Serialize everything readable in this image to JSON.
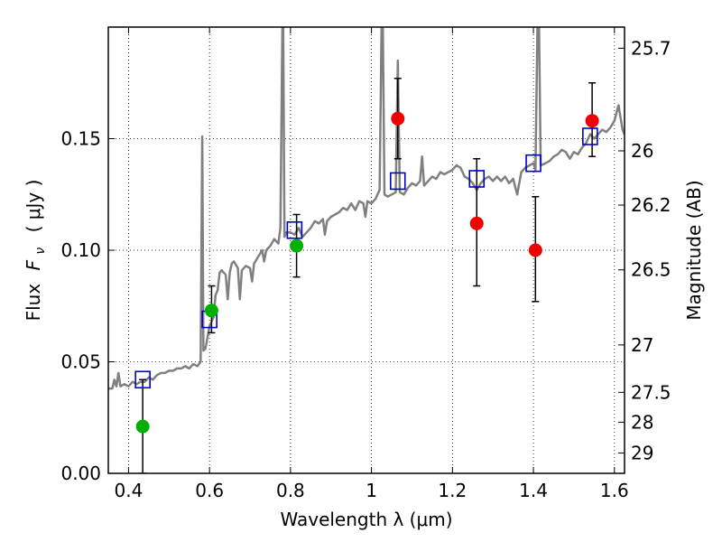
{
  "chart_data": {
    "type": "scatter",
    "xlabel": "Wavelength  λ (μm)",
    "ylabel": "Flux  F_ν  ( μJy )",
    "ylabel_parts": {
      "prefix": "Flux",
      "symbol": "F",
      "subscript": "ν",
      "unit": "( μJy )"
    },
    "y2label": "Magnitude (AB)",
    "xlim": [
      0.35,
      1.625
    ],
    "ylim": [
      0.0,
      0.2
    ],
    "grid": true,
    "x_ticks": [
      {
        "value": 0.4,
        "label": "0.4"
      },
      {
        "value": 0.6,
        "label": "0.6"
      },
      {
        "value": 0.8,
        "label": "0.8"
      },
      {
        "value": 1.0,
        "label": "1"
      },
      {
        "value": 1.2,
        "label": "1.2"
      },
      {
        "value": 1.4,
        "label": "1.4"
      },
      {
        "value": 1.6,
        "label": "1.6"
      }
    ],
    "y_ticks": [
      {
        "value": 0.0,
        "label": "0.00"
      },
      {
        "value": 0.05,
        "label": "0.05"
      },
      {
        "value": 0.1,
        "label": "0.10"
      },
      {
        "value": 0.15,
        "label": "0.15"
      }
    ],
    "y2_ticks": [
      {
        "mag": 25.7,
        "label": "25.7"
      },
      {
        "mag": 26.0,
        "label": "26"
      },
      {
        "mag": 26.2,
        "label": "26.2"
      },
      {
        "mag": 26.5,
        "label": "26.5"
      },
      {
        "mag": 27.0,
        "label": "27"
      },
      {
        "mag": 27.5,
        "label": "27.5"
      },
      {
        "mag": 28.0,
        "label": "28"
      },
      {
        "mag": 29.0,
        "label": "29"
      }
    ],
    "colors": {
      "template": "#808080",
      "model_box": "#0000cc",
      "detection_green": "#00b000",
      "detection_red": "#ee0000",
      "errorbar": "#000000"
    },
    "series": [
      {
        "marker": "circle",
        "color": "#00b000",
        "points": [
          {
            "x": 0.435,
            "y": 0.021,
            "yerr_low": 0.021,
            "yerr_high": 0.021
          },
          {
            "x": 0.605,
            "y": 0.073,
            "yerr_low": 0.01,
            "yerr_high": 0.011
          },
          {
            "x": 0.815,
            "y": 0.102,
            "yerr_low": 0.014,
            "yerr_high": 0.014
          }
        ]
      },
      {
        "marker": "circle",
        "color": "#ee0000",
        "points": [
          {
            "x": 1.065,
            "y": 0.159,
            "yerr_low": 0.018,
            "yerr_high": 0.018
          },
          {
            "x": 1.26,
            "y": 0.112,
            "yerr_low": 0.028,
            "yerr_high": 0.029
          },
          {
            "x": 1.405,
            "y": 0.1,
            "yerr_low": 0.023,
            "yerr_high": 0.024
          },
          {
            "x": 1.545,
            "y": 0.158,
            "yerr_low": 0.016,
            "yerr_high": 0.017
          }
        ]
      },
      {
        "marker": "square",
        "color": "#0000cc",
        "points": [
          {
            "x": 0.435,
            "y": 0.042
          },
          {
            "x": 0.6,
            "y": 0.069
          },
          {
            "x": 0.81,
            "y": 0.109
          },
          {
            "x": 1.065,
            "y": 0.131
          },
          {
            "x": 1.26,
            "y": 0.132
          },
          {
            "x": 1.4,
            "y": 0.139
          },
          {
            "x": 1.54,
            "y": 0.151
          }
        ]
      },
      {
        "marker": "line",
        "color": "#808080",
        "points": [
          [
            0.35,
            0.038
          ],
          [
            0.36,
            0.038
          ],
          [
            0.365,
            0.042
          ],
          [
            0.37,
            0.039
          ],
          [
            0.375,
            0.045
          ],
          [
            0.38,
            0.039
          ],
          [
            0.39,
            0.04
          ],
          [
            0.4,
            0.039
          ],
          [
            0.41,
            0.041
          ],
          [
            0.42,
            0.04
          ],
          [
            0.43,
            0.041
          ],
          [
            0.44,
            0.041
          ],
          [
            0.45,
            0.043
          ],
          [
            0.46,
            0.042
          ],
          [
            0.47,
            0.044
          ],
          [
            0.48,
            0.045
          ],
          [
            0.49,
            0.045
          ],
          [
            0.5,
            0.046
          ],
          [
            0.51,
            0.046
          ],
          [
            0.52,
            0.047
          ],
          [
            0.53,
            0.047
          ],
          [
            0.54,
            0.048
          ],
          [
            0.55,
            0.047
          ],
          [
            0.56,
            0.049
          ],
          [
            0.57,
            0.048
          ],
          [
            0.578,
            0.05
          ],
          [
            0.582,
            0.151
          ],
          [
            0.585,
            0.055
          ],
          [
            0.59,
            0.056
          ],
          [
            0.6,
            0.066
          ],
          [
            0.61,
            0.07
          ],
          [
            0.615,
            0.08
          ],
          [
            0.62,
            0.082
          ],
          [
            0.625,
            0.09
          ],
          [
            0.63,
            0.091
          ],
          [
            0.64,
            0.089
          ],
          [
            0.645,
            0.078
          ],
          [
            0.65,
            0.09
          ],
          [
            0.655,
            0.094
          ],
          [
            0.66,
            0.095
          ],
          [
            0.67,
            0.092
          ],
          [
            0.675,
            0.078
          ],
          [
            0.68,
            0.091
          ],
          [
            0.69,
            0.093
          ],
          [
            0.7,
            0.092
          ],
          [
            0.705,
            0.086
          ],
          [
            0.71,
            0.094
          ],
          [
            0.72,
            0.097
          ],
          [
            0.73,
            0.1
          ],
          [
            0.735,
            0.095
          ],
          [
            0.74,
            0.1
          ],
          [
            0.75,
            0.102
          ],
          [
            0.76,
            0.105
          ],
          [
            0.77,
            0.103
          ],
          [
            0.775,
            0.11
          ],
          [
            0.78,
            0.2
          ],
          [
            0.782,
            0.2
          ],
          [
            0.785,
            0.106
          ],
          [
            0.79,
            0.108
          ],
          [
            0.8,
            0.108
          ],
          [
            0.81,
            0.107
          ],
          [
            0.82,
            0.11
          ],
          [
            0.83,
            0.106
          ],
          [
            0.84,
            0.108
          ],
          [
            0.85,
            0.11
          ],
          [
            0.86,
            0.113
          ],
          [
            0.87,
            0.112
          ],
          [
            0.88,
            0.114
          ],
          [
            0.885,
            0.107
          ],
          [
            0.89,
            0.113
          ],
          [
            0.9,
            0.115
          ],
          [
            0.91,
            0.116
          ],
          [
            0.92,
            0.117
          ],
          [
            0.93,
            0.119
          ],
          [
            0.94,
            0.118
          ],
          [
            0.95,
            0.121
          ],
          [
            0.96,
            0.118
          ],
          [
            0.97,
            0.122
          ],
          [
            0.98,
            0.121
          ],
          [
            0.985,
            0.115
          ],
          [
            0.99,
            0.122
          ],
          [
            1.0,
            0.121
          ],
          [
            1.01,
            0.123
          ],
          [
            1.02,
            0.127
          ],
          [
            1.025,
            0.2
          ],
          [
            1.028,
            0.2
          ],
          [
            1.032,
            0.125
          ],
          [
            1.04,
            0.124
          ],
          [
            1.05,
            0.125
          ],
          [
            1.06,
            0.126
          ],
          [
            1.065,
            0.185
          ],
          [
            1.07,
            0.126
          ],
          [
            1.08,
            0.125
          ],
          [
            1.09,
            0.128
          ],
          [
            1.1,
            0.13
          ],
          [
            1.11,
            0.129
          ],
          [
            1.12,
            0.131
          ],
          [
            1.125,
            0.142
          ],
          [
            1.13,
            0.129
          ],
          [
            1.14,
            0.131
          ],
          [
            1.15,
            0.133
          ],
          [
            1.16,
            0.132
          ],
          [
            1.17,
            0.135
          ],
          [
            1.18,
            0.134
          ],
          [
            1.19,
            0.135
          ],
          [
            1.2,
            0.136
          ],
          [
            1.21,
            0.138
          ],
          [
            1.22,
            0.137
          ],
          [
            1.23,
            0.133
          ],
          [
            1.24,
            0.132
          ],
          [
            1.25,
            0.13
          ],
          [
            1.26,
            0.127
          ],
          [
            1.27,
            0.13
          ],
          [
            1.28,
            0.132
          ],
          [
            1.29,
            0.133
          ],
          [
            1.3,
            0.131
          ],
          [
            1.31,
            0.133
          ],
          [
            1.32,
            0.131
          ],
          [
            1.33,
            0.133
          ],
          [
            1.34,
            0.13
          ],
          [
            1.35,
            0.132
          ],
          [
            1.36,
            0.125
          ],
          [
            1.37,
            0.135
          ],
          [
            1.38,
            0.137
          ],
          [
            1.39,
            0.138
          ],
          [
            1.4,
            0.139
          ],
          [
            1.405,
            0.136
          ],
          [
            1.41,
            0.2
          ],
          [
            1.414,
            0.2
          ],
          [
            1.418,
            0.138
          ],
          [
            1.43,
            0.139
          ],
          [
            1.44,
            0.14
          ],
          [
            1.45,
            0.142
          ],
          [
            1.46,
            0.143
          ],
          [
            1.47,
            0.145
          ],
          [
            1.48,
            0.144
          ],
          [
            1.49,
            0.141
          ],
          [
            1.5,
            0.144
          ],
          [
            1.51,
            0.143
          ],
          [
            1.52,
            0.146
          ],
          [
            1.53,
            0.148
          ],
          [
            1.54,
            0.152
          ],
          [
            1.55,
            0.15
          ],
          [
            1.56,
            0.152
          ],
          [
            1.57,
            0.154
          ],
          [
            1.58,
            0.153
          ],
          [
            1.59,
            0.155
          ],
          [
            1.6,
            0.158
          ],
          [
            1.61,
            0.165
          ],
          [
            1.62,
            0.154
          ],
          [
            1.625,
            0.152
          ]
        ]
      }
    ]
  }
}
